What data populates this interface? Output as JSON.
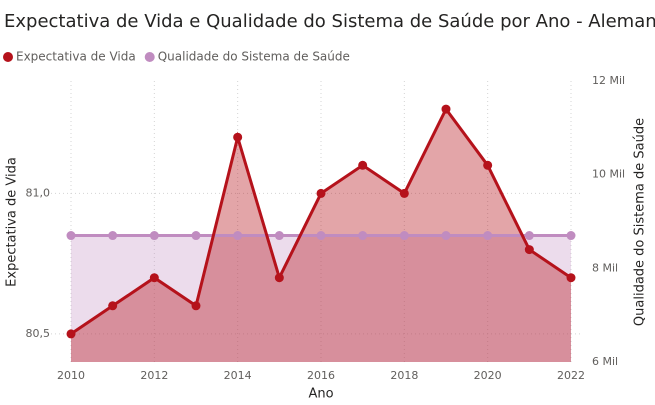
{
  "chart_data": {
    "type": "line",
    "title": "Expectativa de Vida e Qualidade do Sistema de Saúde por Ano - Alemanha",
    "x_label": "Ano",
    "y_label": "Expectativa de Vida",
    "y2_label": "Qualidade do Sistema de Saúde",
    "x": [
      2010,
      2011,
      2012,
      2013,
      2014,
      2015,
      2016,
      2017,
      2018,
      2019,
      2020,
      2021,
      2022
    ],
    "series": [
      {
        "name": "Expectativa de Vida",
        "color": "#b5121b",
        "values": [
          80.5,
          80.6,
          80.7,
          80.6,
          81.2,
          80.7,
          81.0,
          81.1,
          81.0,
          81.3,
          81.1,
          80.8,
          80.7
        ]
      },
      {
        "name": "Qualidade do Sistema de Saúde",
        "color": "#c08cc0",
        "axis": "y2",
        "values": [
          8700,
          8700,
          8700,
          8700,
          8700,
          8700,
          8700,
          8700,
          8700,
          8700,
          8700,
          8700,
          8700
        ]
      }
    ],
    "xlim": [
      2010,
      2022
    ],
    "xticks": [
      2010,
      2012,
      2014,
      2016,
      2018,
      2020,
      2022
    ],
    "ylim": [
      80.4,
      81.4
    ],
    "yticks": [
      {
        "value": 80.5,
        "label": "80,5"
      },
      {
        "value": 81,
        "label": "81,0"
      }
    ],
    "y2lim": [
      6000,
      12000
    ],
    "y2ticks": [
      {
        "value": 6000,
        "label": "6 Mil"
      },
      {
        "value": 8000,
        "label": "8 Mil"
      },
      {
        "value": 10000,
        "label": "10 Mil"
      },
      {
        "value": 12000,
        "label": "12 Mil"
      }
    ],
    "grid": true,
    "legend": "top-left"
  }
}
